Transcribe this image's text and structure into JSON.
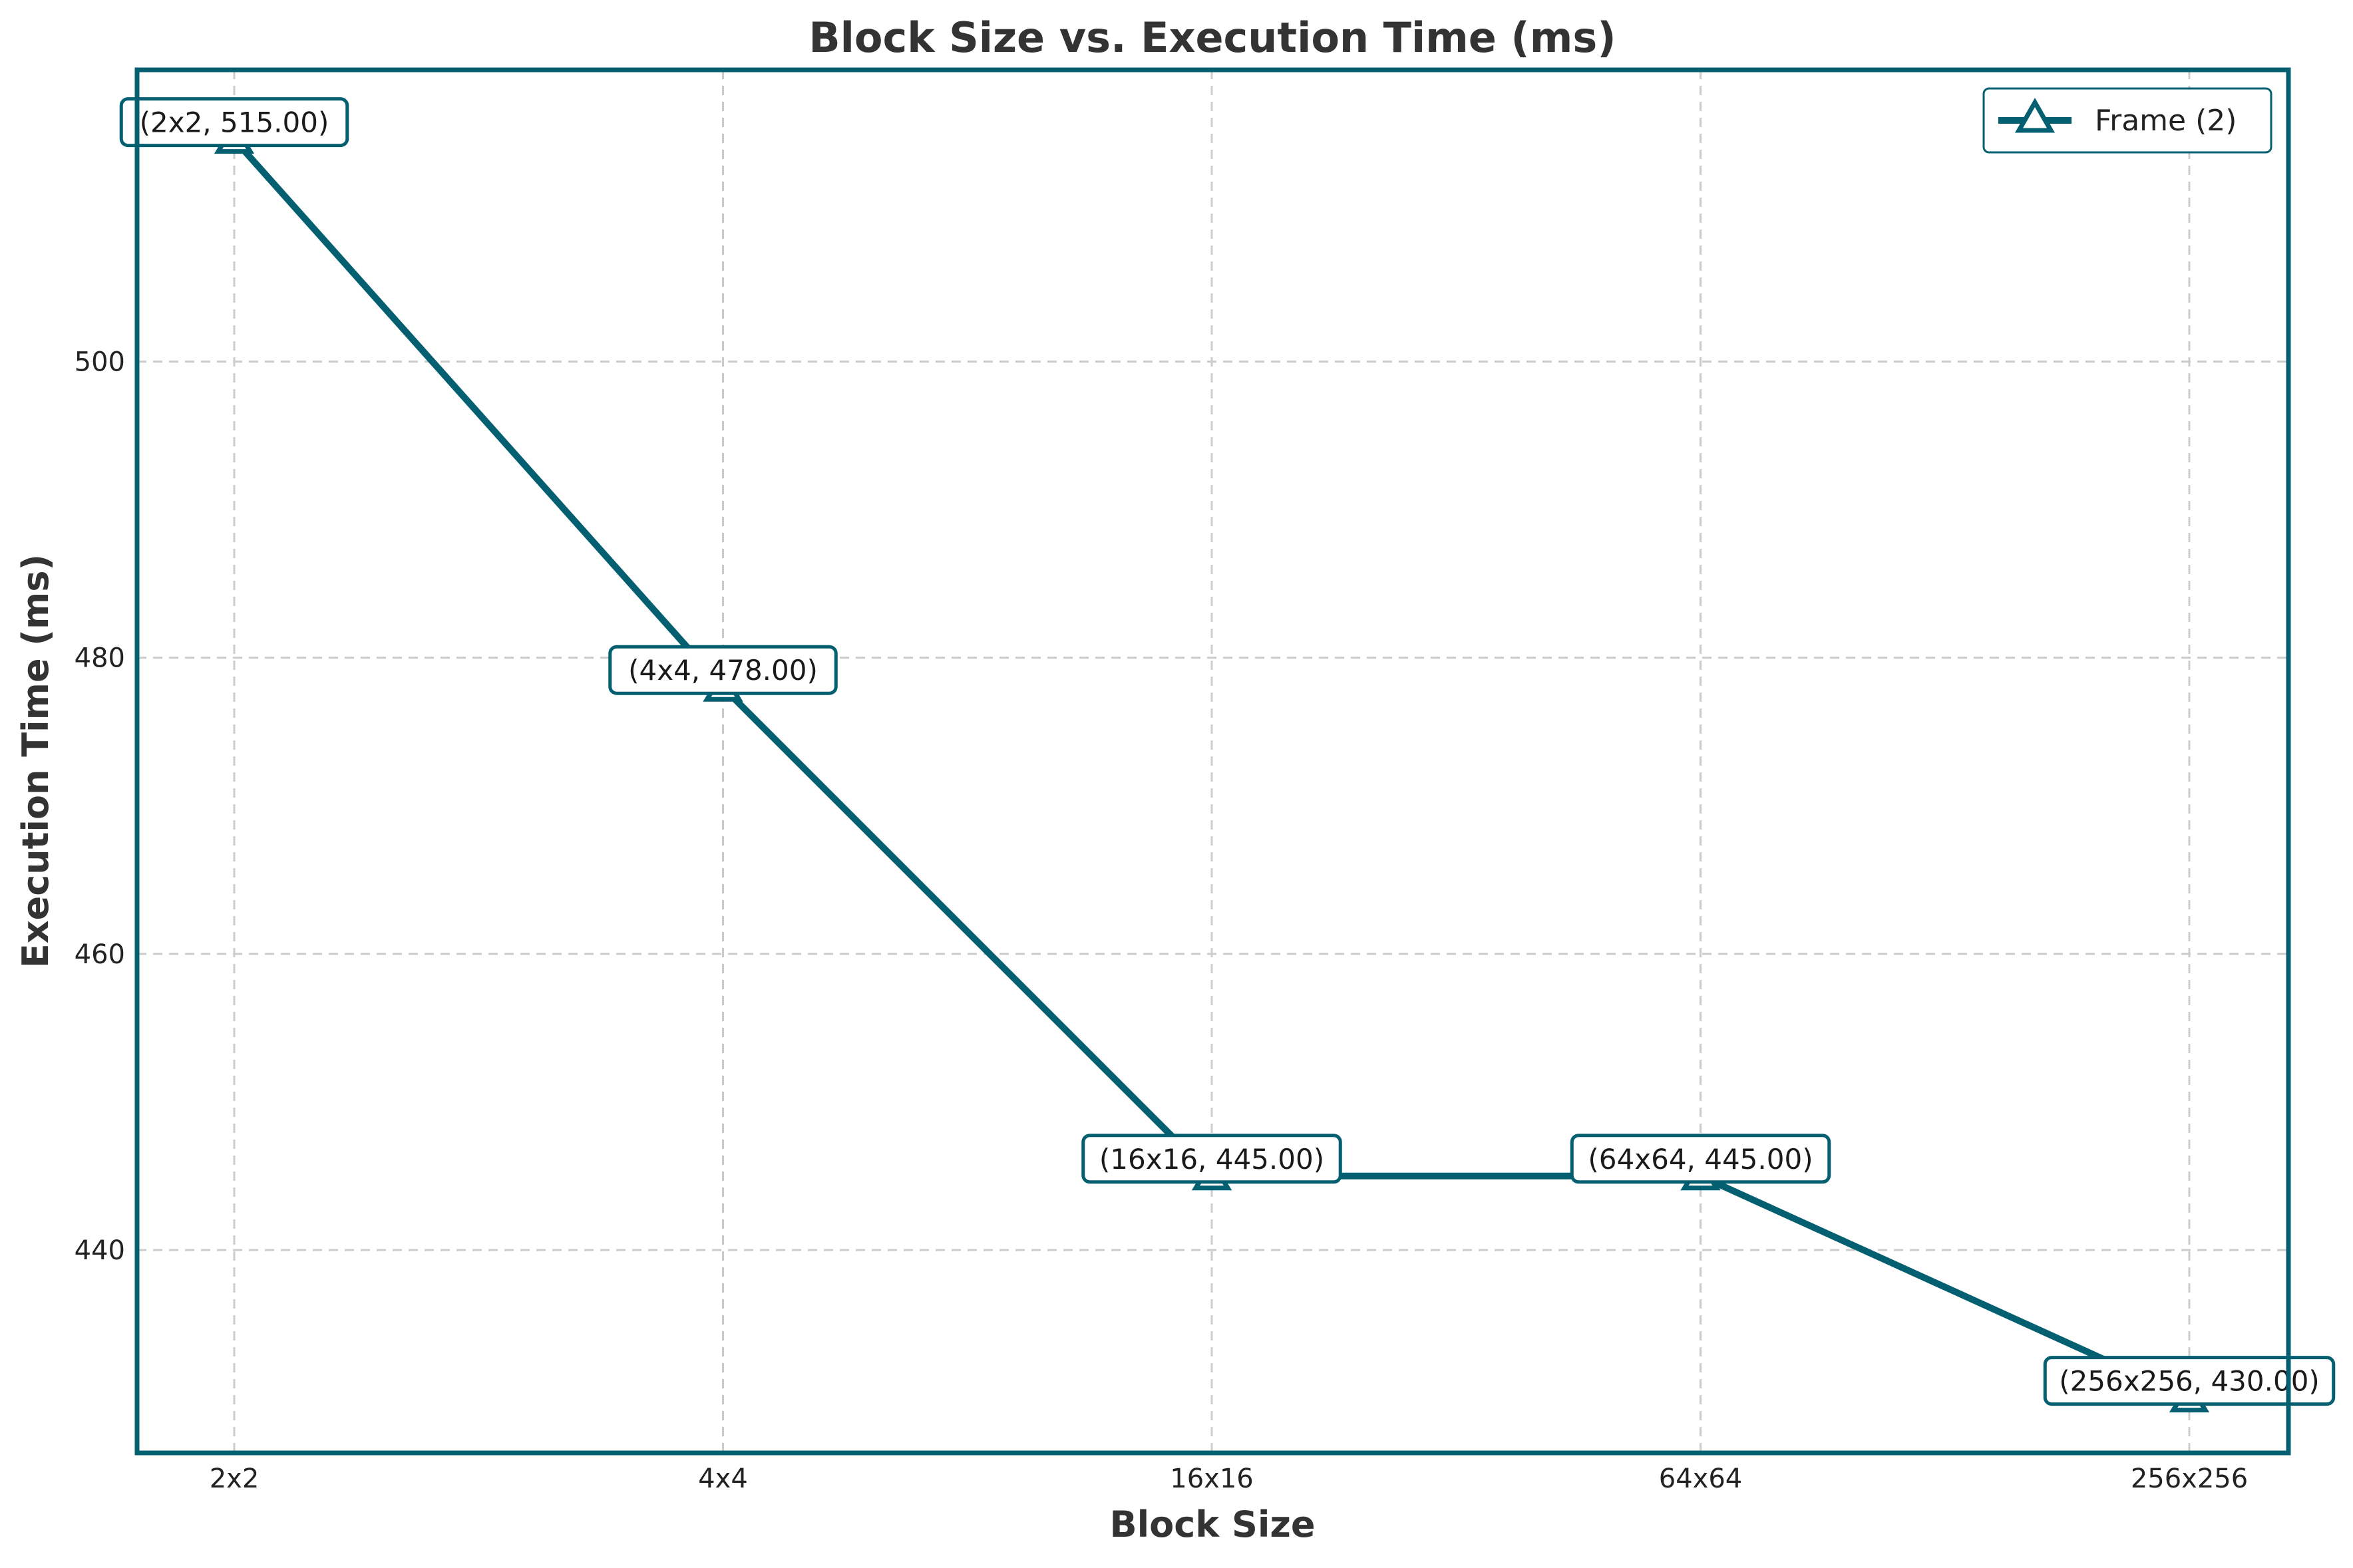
{
  "chart_data": {
    "type": "line",
    "title": "Block Size vs. Execution Time (ms)",
    "xlabel": "Block Size",
    "ylabel": "Execution Time (ms)",
    "categories": [
      "2x2",
      "4x4",
      "16x16",
      "64x64",
      "256x256"
    ],
    "series": [
      {
        "name": "Frame (2)",
        "values": [
          515.0,
          478.0,
          445.0,
          445.0,
          430.0
        ],
        "marker": "triangle-up",
        "color": "#045f71"
      }
    ],
    "annotations": [
      "(2x2, 515.00)",
      "(4x4, 478.00)",
      "(16x16, 445.00)",
      "(64x64, 445.00)",
      "(256x256, 430.00)"
    ],
    "ylim": [
      426.3,
      519.7
    ],
    "yticks": [
      440,
      460,
      480,
      500
    ],
    "grid": true,
    "legend_position": "top-right",
    "colors": {
      "accent": "#045f71",
      "grid": "#cccccc",
      "text": "#333333"
    }
  }
}
